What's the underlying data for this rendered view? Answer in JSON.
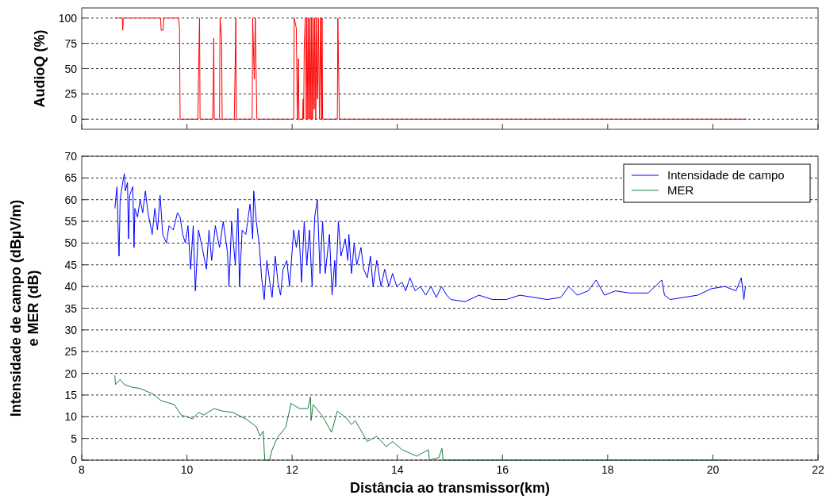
{
  "chart_data": [
    {
      "type": "line",
      "ylabel": "AudioQ (%)",
      "xlim": [
        8,
        22
      ],
      "xticks": [
        {
          "value": 8,
          "label": null
        },
        {
          "value": 10,
          "label": null
        },
        {
          "value": 12,
          "label": null
        },
        {
          "value": 14,
          "label": null
        },
        {
          "value": 16,
          "label": null
        },
        {
          "value": 18,
          "label": null
        },
        {
          "value": 20,
          "label": null
        },
        {
          "value": 22,
          "label": null
        }
      ],
      "ylim": [
        -10,
        110
      ],
      "yticks": [
        0,
        25,
        50,
        75,
        100
      ],
      "grid": "y",
      "tick_labels": "y",
      "legend": false,
      "series": [
        {
          "color": "#ff0000",
          "x": [
            8.63,
            8.77,
            8.78,
            8.79,
            9.5,
            9.51,
            9.55,
            9.56,
            9.84,
            9.86,
            9.87,
            10.21,
            10.22,
            10.24,
            10.25,
            10.49,
            10.5,
            10.51,
            10.52,
            10.62,
            10.63,
            10.66,
            10.67,
            10.9,
            10.91,
            10.93,
            10.94,
            11.24,
            11.25,
            11.28,
            11.3,
            11.33,
            12.03,
            12.04,
            12.08,
            12.1,
            12.12,
            12.13,
            12.2,
            12.21,
            12.22,
            12.23,
            12.25,
            12.27,
            12.28,
            12.3,
            12.31,
            12.33,
            12.34,
            12.36,
            12.37,
            12.39,
            12.4,
            12.42,
            12.43,
            12.45,
            12.46,
            12.48,
            12.49,
            12.5,
            12.52,
            12.54,
            12.56,
            12.57,
            12.58,
            12.86,
            12.87,
            12.89,
            12.9,
            20.64
          ],
          "values": [
            100,
            100,
            88,
            100,
            100,
            88,
            88,
            100,
            100,
            90,
            0,
            0,
            40,
            100,
            0,
            0,
            30,
            80,
            0,
            0,
            100,
            80,
            0,
            0,
            30,
            100,
            0,
            0,
            100,
            40,
            100,
            0,
            0,
            100,
            90,
            0,
            60,
            0,
            0,
            20,
            0,
            70,
            100,
            0,
            100,
            0,
            100,
            0,
            100,
            0,
            100,
            0,
            100,
            10,
            100,
            0,
            100,
            20,
            40,
            100,
            0,
            100,
            0,
            100,
            0,
            0,
            100,
            30,
            0,
            0
          ]
        }
      ]
    },
    {
      "type": "line",
      "xlabel": "Distância ao transmissor(km)",
      "ylabel": "Intensidade de campo (dBµV/m)\ne MER (dB)",
      "xlim": [
        8,
        22
      ],
      "xticks": [
        8,
        10,
        12,
        14,
        16,
        18,
        20,
        22
      ],
      "ylim": [
        0,
        70
      ],
      "yticks": [
        0,
        5,
        10,
        15,
        20,
        25,
        30,
        35,
        40,
        45,
        50,
        55,
        60,
        65,
        70
      ],
      "grid": "y",
      "legend": "top right",
      "series": [
        {
          "name": "Intensidade de campo",
          "color": "#0000ff",
          "x": [
            8.63,
            8.67,
            8.7,
            8.71,
            8.73,
            8.78,
            8.81,
            8.83,
            8.87,
            8.89,
            8.91,
            8.97,
            8.995,
            9.01,
            9.06,
            9.11,
            9.16,
            9.21,
            9.26,
            9.34,
            9.39,
            9.44,
            9.49,
            9.54,
            9.61,
            9.66,
            9.74,
            9.82,
            9.87,
            9.92,
            9.97,
            10.02,
            10.07,
            10.12,
            10.16,
            10.22,
            10.29,
            10.37,
            10.42,
            10.47,
            10.54,
            10.62,
            10.69,
            10.77,
            10.8,
            10.85,
            10.92,
            10.97,
            11.0,
            11.05,
            11.12,
            11.2,
            11.25,
            11.27,
            11.32,
            11.38,
            11.42,
            11.47,
            11.52,
            11.575,
            11.62,
            11.68,
            11.73,
            11.78,
            11.83,
            11.9,
            11.95,
            12.03,
            12.08,
            12.13,
            12.18,
            12.23,
            12.28,
            12.33,
            12.38,
            12.43,
            12.48,
            12.53,
            12.58,
            12.63,
            12.71,
            12.76,
            12.81,
            12.83,
            12.88,
            12.93,
            13.01,
            13.06,
            13.08,
            13.13,
            13.18,
            13.23,
            13.31,
            13.36,
            13.43,
            13.49,
            13.54,
            13.61,
            13.69,
            13.76,
            13.84,
            13.91,
            13.99,
            14.09,
            14.16,
            14.24,
            14.34,
            14.44,
            14.54,
            14.64,
            14.74,
            14.84,
            14.94,
            15.02,
            15.29,
            15.55,
            15.81,
            16.07,
            16.33,
            16.59,
            16.85,
            17.11,
            17.26,
            17.42,
            17.63,
            17.78,
            17.94,
            18.15,
            18.41,
            18.77,
            19.03,
            19.08,
            19.19,
            19.45,
            19.71,
            19.97,
            20.23,
            20.44,
            20.54,
            20.59,
            20.62
          ],
          "values": [
            58,
            63,
            50,
            47,
            60,
            64,
            66,
            62,
            64,
            51,
            61,
            63,
            49,
            58,
            56,
            60,
            57,
            62,
            57,
            52,
            58,
            53,
            61,
            52,
            50,
            54,
            53,
            57,
            56,
            52,
            50,
            54,
            44,
            54,
            39,
            53,
            49,
            44,
            53,
            46,
            54,
            49,
            55,
            48,
            40,
            55,
            45,
            58,
            40,
            53,
            52,
            59,
            51,
            62,
            55,
            49,
            42,
            37,
            46,
            41,
            37.5,
            47,
            41,
            38,
            44,
            46,
            40,
            53,
            49,
            53,
            41,
            55,
            45,
            53,
            40,
            56,
            60,
            43,
            55,
            43,
            52,
            38,
            46,
            40,
            55,
            47,
            51,
            46,
            52,
            43,
            50,
            45,
            49,
            44,
            42,
            47,
            40,
            46,
            40,
            44,
            40,
            43,
            40,
            41,
            39,
            42,
            39,
            40,
            38,
            40,
            37.5,
            40,
            38,
            37,
            36.5,
            38,
            37,
            37,
            38,
            37.5,
            37,
            37.5,
            40,
            38,
            39,
            41.5,
            38,
            39,
            38.5,
            38.5,
            41.5,
            38,
            37,
            37.5,
            38,
            39.5,
            40,
            39,
            42,
            37,
            40
          ]
        },
        {
          "name": "MER",
          "color": "#1f7a45",
          "x": [
            8.63,
            8.64,
            8.73,
            8.81,
            8.96,
            9.11,
            9.36,
            9.51,
            9.76,
            9.89,
            10.11,
            10.22,
            10.32,
            10.52,
            10.67,
            10.87,
            11.12,
            11.32,
            11.39,
            11.45,
            11.48,
            11.57,
            11.62,
            11.72,
            11.88,
            11.98,
            12.05,
            12.14,
            12.3,
            12.35,
            12.36,
            12.4,
            12.58,
            12.75,
            12.86,
            13.03,
            13.13,
            13.2,
            13.43,
            13.61,
            13.79,
            13.91,
            14.09,
            14.37,
            14.59,
            14.61,
            14.79,
            14.85,
            14.87,
            20.29
          ],
          "values": [
            19.5,
            17.4,
            18.6,
            17.4,
            16.8,
            16.5,
            15.2,
            13.7,
            12.8,
            10.4,
            9.5,
            11,
            10.4,
            11.9,
            11.3,
            11,
            9.5,
            7.7,
            5.5,
            6.7,
            0,
            0,
            2.4,
            5.2,
            7.6,
            13.1,
            12.5,
            11.9,
            11.9,
            14.6,
            9.1,
            12.8,
            10.1,
            6.4,
            11.3,
            9.7,
            8.2,
            9.1,
            4.3,
            5.5,
            3.1,
            4.3,
            2.4,
            0.9,
            2.4,
            0,
            0.6,
            2.7,
            0,
            0
          ]
        }
      ]
    }
  ]
}
